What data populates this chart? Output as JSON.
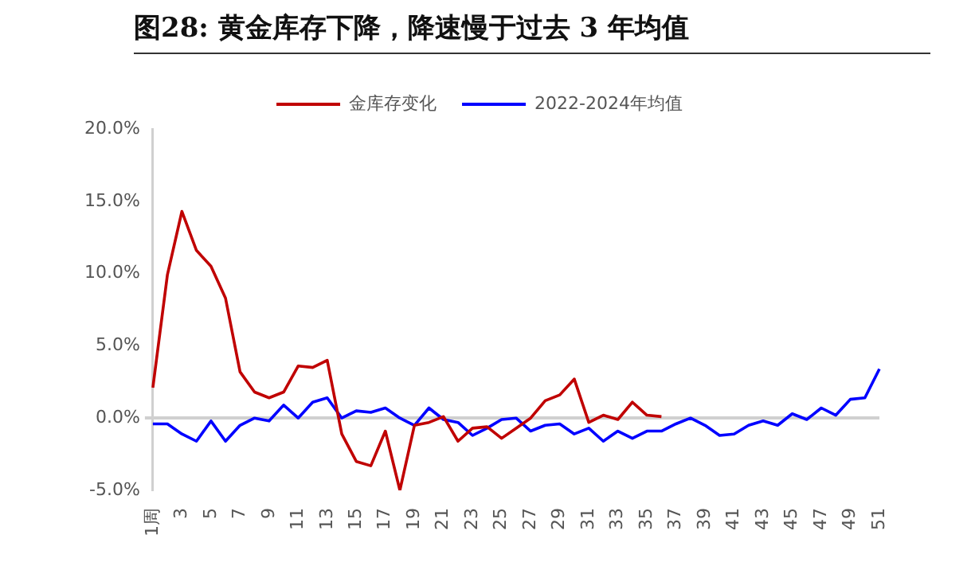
{
  "chart_data": {
    "type": "line",
    "title": "图28: 黄金库存下降，降速慢于过去 3 年均值",
    "categories": [
      "1周",
      null,
      "3",
      null,
      "5",
      null,
      "7",
      null,
      "9",
      null,
      "11",
      null,
      "13",
      null,
      "15",
      null,
      "17",
      null,
      "19",
      null,
      "21",
      null,
      "23",
      null,
      "25",
      null,
      "27",
      null,
      "29",
      null,
      "31",
      null,
      "33",
      null,
      "35",
      null,
      "37",
      null,
      "39",
      null,
      "41",
      null,
      "43",
      null,
      "45",
      null,
      "47",
      null,
      "49",
      null,
      "51"
    ],
    "series": [
      {
        "name": "金库存变化",
        "color": "#c00000",
        "values": [
          2.1,
          9.9,
          14.3,
          11.6,
          10.5,
          8.3,
          3.2,
          1.8,
          1.4,
          1.8,
          3.6,
          3.5,
          4.0,
          -1.1,
          -3.0,
          -3.3,
          -0.9,
          -5.0,
          -0.5,
          -0.3,
          0.1,
          -1.6,
          -0.7,
          -0.6,
          -1.4,
          -0.7,
          0.0,
          1.2,
          1.6,
          2.7,
          -0.3,
          0.2,
          -0.1,
          1.1,
          0.2,
          0.1,
          null,
          null,
          null,
          null,
          null,
          null,
          null,
          null,
          null,
          null,
          null,
          null,
          null,
          null,
          null
        ]
      },
      {
        "name": "2022-2024年均值",
        "color": "#0000ff",
        "values": [
          -0.4,
          -0.4,
          -1.1,
          -1.6,
          -0.2,
          -1.6,
          -0.5,
          0.0,
          -0.2,
          0.9,
          0.0,
          1.1,
          1.4,
          0.0,
          0.5,
          0.4,
          0.7,
          0.0,
          -0.5,
          0.7,
          -0.1,
          -0.3,
          -1.2,
          -0.7,
          -0.1,
          0.0,
          -0.9,
          -0.5,
          -0.4,
          -1.1,
          -0.7,
          -1.6,
          -0.9,
          -1.4,
          -0.9,
          -0.9,
          -0.4,
          0.0,
          -0.5,
          -1.2,
          -1.1,
          -0.5,
          -0.2,
          -0.5,
          0.3,
          -0.1,
          0.7,
          0.2,
          1.3,
          1.4,
          3.4
        ]
      }
    ],
    "ylim": [
      -5,
      20
    ],
    "yticks": [
      {
        "value": -5,
        "label": "-5.0%"
      },
      {
        "value": 0,
        "label": "0.0%"
      },
      {
        "value": 5,
        "label": "5.0%"
      },
      {
        "value": 10,
        "label": "10.0%"
      },
      {
        "value": 15,
        "label": "15.0%"
      },
      {
        "value": 20,
        "label": "20.0%"
      }
    ],
    "legend": "top",
    "marker": "none",
    "line_style": "solid"
  }
}
